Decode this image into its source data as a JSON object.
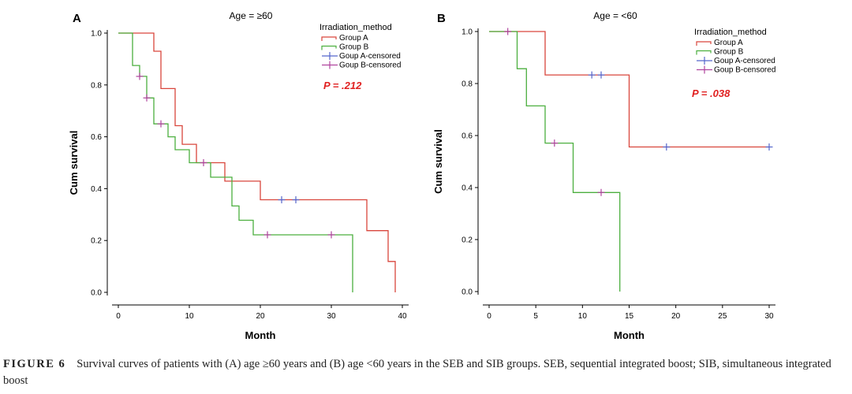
{
  "colors": {
    "group_a": "#d9463c",
    "group_b": "#4caf3f",
    "a_censored": "#5566cc",
    "b_censored": "#b0449e",
    "p_value": "#e02020"
  },
  "chart_data": [
    {
      "type": "line",
      "panel": "A",
      "title": "Age = ≥60",
      "xlabel": "Month",
      "ylabel": "Cum survival",
      "xlim": [
        0,
        40
      ],
      "ylim": [
        0,
        1
      ],
      "xticks": [
        0,
        10,
        20,
        30,
        40
      ],
      "yticks": [
        "0.0",
        "0.2",
        "0.4",
        "0.6",
        "0.8",
        "1.0"
      ],
      "legend_title": "Irradiation_method",
      "legend_placement": "top-right",
      "p_value": "P = .212",
      "series": [
        {
          "name": "Group A",
          "x": [
            0,
            5,
            5,
            6,
            6,
            7,
            7,
            8,
            8,
            9,
            9,
            10,
            10,
            11,
            11,
            15,
            15,
            20,
            20,
            35,
            35,
            38,
            38,
            39,
            39
          ],
          "y": [
            1.0,
            1.0,
            0.93,
            0.93,
            0.786,
            0.786,
            0.786,
            0.786,
            0.643,
            0.643,
            0.571,
            0.571,
            0.571,
            0.571,
            0.5,
            0.5,
            0.429,
            0.429,
            0.357,
            0.357,
            0.238,
            0.238,
            0.119,
            0.119,
            0.0
          ]
        },
        {
          "name": "Group B",
          "x": [
            0,
            2,
            2,
            3,
            3,
            4,
            4,
            5,
            5,
            7,
            7,
            8,
            8,
            10,
            10,
            13,
            13,
            16,
            16,
            17,
            17,
            19,
            19,
            33,
            33
          ],
          "y": [
            1.0,
            1.0,
            0.875,
            0.875,
            0.833,
            0.833,
            0.75,
            0.75,
            0.65,
            0.65,
            0.6,
            0.6,
            0.55,
            0.55,
            0.5,
            0.5,
            0.444,
            0.444,
            0.333,
            0.333,
            0.278,
            0.278,
            0.222,
            0.222,
            0.0
          ]
        },
        {
          "name": "Goup A-censored",
          "x": [
            23,
            25
          ],
          "y": [
            0.357,
            0.357
          ]
        },
        {
          "name": "Goup B-censored",
          "x": [
            3,
            4,
            6,
            12,
            21,
            30
          ],
          "y": [
            0.833,
            0.75,
            0.65,
            0.5,
            0.222,
            0.222
          ]
        }
      ]
    },
    {
      "type": "line",
      "panel": "B",
      "title": "Age = <60",
      "xlabel": "Month",
      "ylabel": "Cum survival",
      "xlim": [
        0,
        30
      ],
      "ylim": [
        0,
        1
      ],
      "xticks": [
        0,
        5,
        10,
        15,
        20,
        25,
        30
      ],
      "yticks": [
        "0.0",
        "0.2",
        "0.4",
        "0.6",
        "0.8",
        "1.0"
      ],
      "legend_title": "Irradiation_method",
      "legend_placement": "top-right",
      "p_value": "P = .038",
      "series": [
        {
          "name": "Group A",
          "x": [
            0,
            6,
            6,
            15,
            15,
            30
          ],
          "y": [
            1.0,
            1.0,
            0.833,
            0.833,
            0.556,
            0.556
          ]
        },
        {
          "name": "Group B",
          "x": [
            0,
            3,
            3,
            4,
            4,
            6,
            6,
            9,
            9,
            14,
            14
          ],
          "y": [
            1.0,
            1.0,
            0.857,
            0.857,
            0.714,
            0.714,
            0.571,
            0.571,
            0.381,
            0.381,
            0.0
          ]
        },
        {
          "name": "Goup A-censored",
          "x": [
            11,
            12,
            19,
            30
          ],
          "y": [
            0.833,
            0.833,
            0.556,
            0.556
          ]
        },
        {
          "name": "Goup B-censored",
          "x": [
            2,
            7,
            12
          ],
          "y": [
            1.0,
            0.571,
            0.381
          ]
        }
      ]
    }
  ],
  "caption": {
    "label": "FIGURE 6",
    "text": "Survival curves of patients with (A) age ≥60 years and (B) age <60 years in the SEB and SIB groups. SEB, sequential integrated boost; SIB, simultaneous integrated boost"
  }
}
